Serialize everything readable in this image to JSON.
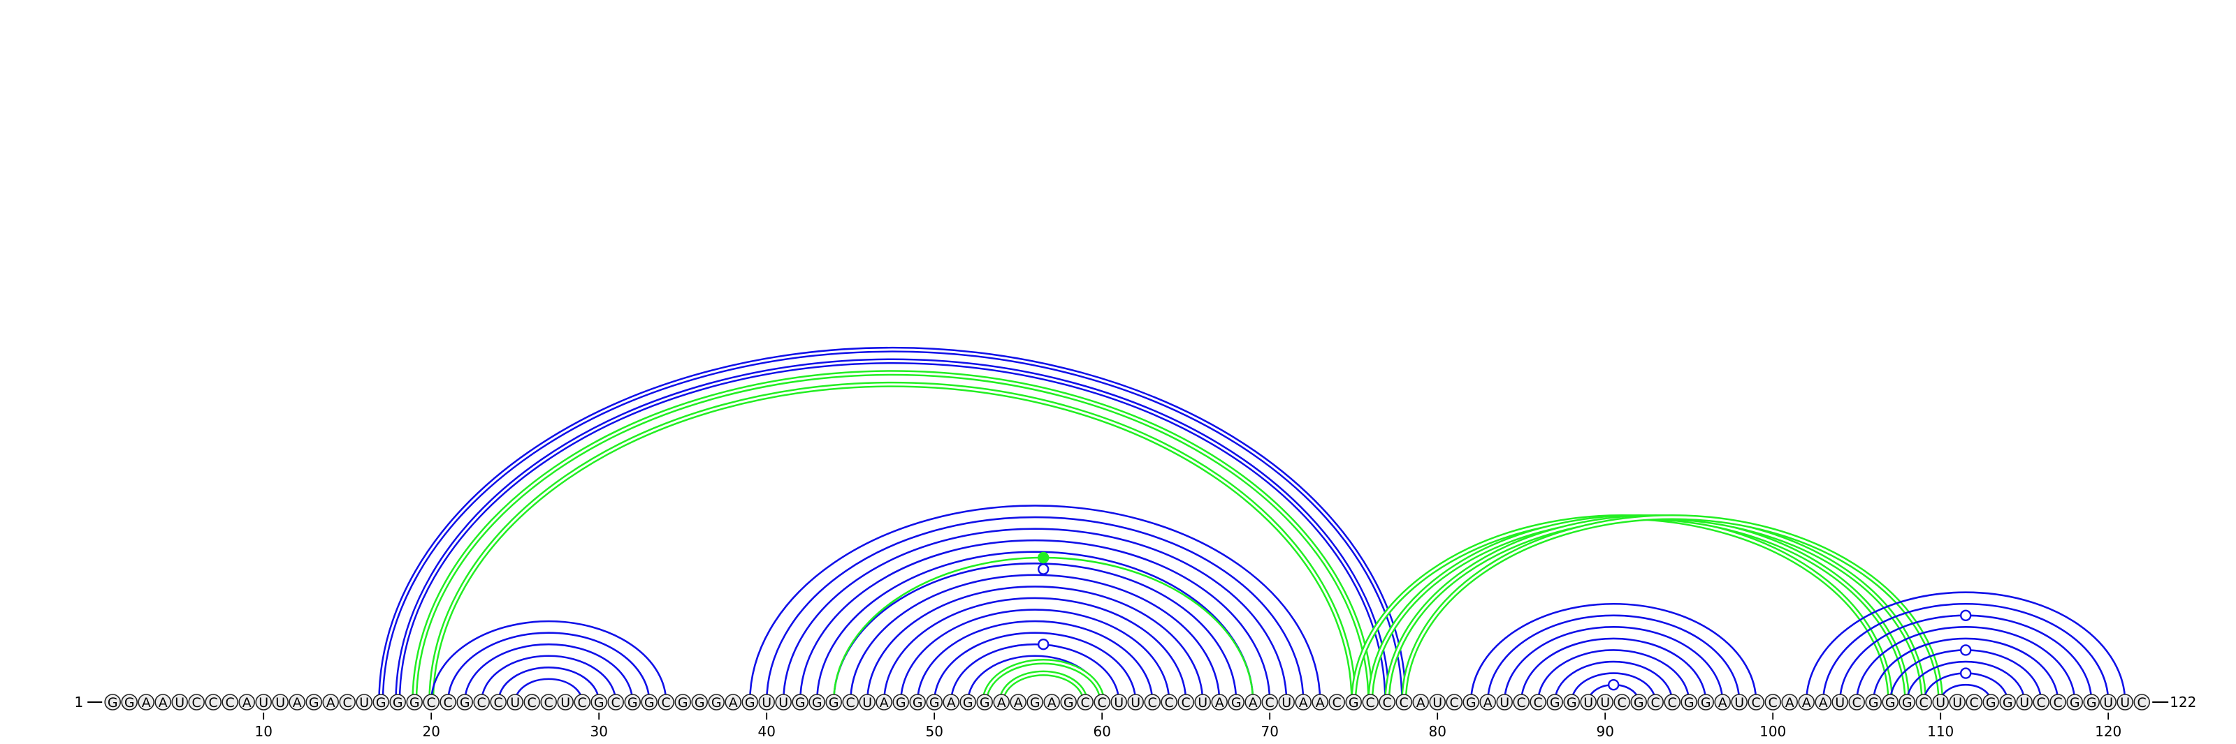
{
  "sequence": "GGAAUCCCAUUAGACUGGGCCGCCUCCUCGCGGCGGGAGUUGGGCUAGGGAGGAAGAGCCUUCCCUAGACUAACGCCCAUCGAUCCGGUUCGCCGGAUCCAAAUCGGGCUUCGGUCCGGUUC",
  "start_label": "1",
  "end_label": "122",
  "tick_labels": [
    "10",
    "20",
    "30",
    "40",
    "50",
    "60",
    "70",
    "80",
    "90",
    "100",
    "110",
    "120"
  ],
  "colors": {
    "blue": "#1010e8",
    "green": "#22ee22",
    "node_fill": "#ececec"
  },
  "chart_data": {
    "type": "arc",
    "positions": {
      "first": 1,
      "last": 122,
      "tick_interval": 10
    },
    "arcs": [
      {
        "color": "blue",
        "double": true,
        "pairs": [
          [
            17,
            78
          ],
          [
            18,
            77
          ]
        ]
      },
      {
        "color": "green",
        "double": true,
        "pairs": [
          [
            19,
            76
          ],
          [
            20,
            75
          ]
        ]
      },
      {
        "color": "blue",
        "double": false,
        "pairs": [
          [
            20,
            34
          ],
          [
            21,
            33
          ],
          [
            22,
            32
          ],
          [
            23,
            31
          ],
          [
            24,
            30
          ],
          [
            25,
            29
          ]
        ]
      },
      {
        "color": "blue",
        "double": false,
        "pairs": [
          [
            39,
            73
          ],
          [
            40,
            72
          ],
          [
            41,
            71
          ],
          [
            42,
            70
          ],
          [
            43,
            69
          ],
          [
            44,
            68
          ],
          [
            45,
            67
          ],
          [
            46,
            66
          ],
          [
            47,
            65
          ],
          [
            48,
            64
          ],
          [
            49,
            63
          ],
          [
            50,
            62
          ],
          [
            51,
            61
          ],
          [
            52,
            60
          ]
        ]
      },
      {
        "color": "green",
        "double": false,
        "pairs": [
          [
            44,
            69
          ]
        ]
      },
      {
        "color": "green",
        "double": true,
        "pairs": [
          [
            53,
            60
          ],
          [
            54,
            59
          ]
        ]
      },
      {
        "color": "green",
        "double": true,
        "pairs": [
          [
            75,
            107
          ],
          [
            76,
            108
          ],
          [
            77,
            109
          ],
          [
            78,
            110
          ]
        ]
      },
      {
        "color": "blue",
        "double": false,
        "pairs": [
          [
            82,
            99
          ],
          [
            83,
            98
          ],
          [
            84,
            97
          ],
          [
            85,
            96
          ],
          [
            86,
            95
          ],
          [
            87,
            94
          ],
          [
            88,
            93
          ],
          [
            89,
            92
          ]
        ]
      },
      {
        "color": "blue",
        "double": false,
        "pairs": [
          [
            102,
            121
          ],
          [
            103,
            120
          ],
          [
            104,
            119
          ],
          [
            105,
            118
          ],
          [
            106,
            117
          ],
          [
            107,
            116
          ],
          [
            108,
            115
          ],
          [
            109,
            114
          ],
          [
            110,
            113
          ]
        ]
      }
    ],
    "markers": [
      {
        "at": 56.5,
        "on_arc": [
          45,
          68
        ],
        "color": "blue",
        "filled": false
      },
      {
        "at": 56.5,
        "on_arc": [
          44,
          69
        ],
        "color": "green",
        "filled": true
      },
      {
        "at": 56.5,
        "on_arc": [
          51,
          61
        ],
        "color": "blue",
        "filled": false
      },
      {
        "at": 90.5,
        "on_arc": [
          89,
          92
        ],
        "color": "blue",
        "filled": false
      },
      {
        "at": 111.5,
        "on_arc": [
          104,
          119
        ],
        "color": "blue",
        "filled": false
      },
      {
        "at": 111.5,
        "on_arc": [
          107,
          116
        ],
        "color": "blue",
        "filled": false
      },
      {
        "at": 111.5,
        "on_arc": [
          109,
          114
        ],
        "color": "blue",
        "filled": false
      }
    ]
  }
}
